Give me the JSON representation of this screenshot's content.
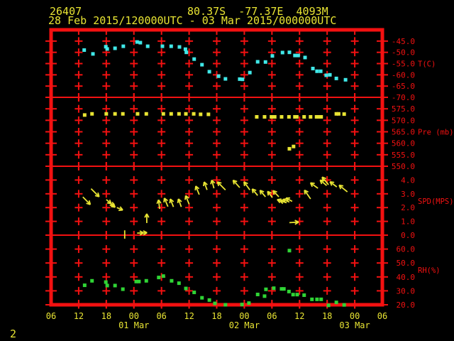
{
  "header": {
    "station_id": "26407",
    "location": "80.37S  -77.37E  4093M",
    "period": "28 Feb 2015/120000UTC - 03 Mar 2015/000000UTC"
  },
  "footer_note": "2",
  "colors": {
    "background": "#000000",
    "grid": "#f31111",
    "axis_label": "#f31111",
    "text_yellow": "#e8e433",
    "temperature": "#40e8e8",
    "pressure": "#e8e433",
    "wind": "#e8e433",
    "humidity": "#2fd435"
  },
  "chart_data": {
    "type": "scatter",
    "title": "Station 26407 meteogram 28 Feb 2015 12UTC - 03 Mar 2015 00UTC",
    "x_axis": {
      "hours_span": 72,
      "tick_step_hours": 6,
      "tick_labels": [
        "06",
        "12",
        "18",
        "00",
        "06",
        "12",
        "18",
        "00",
        "06",
        "12",
        "18",
        "00",
        "06"
      ],
      "date_labels": [
        {
          "text": "01 Mar",
          "tick": 3
        },
        {
          "text": "02 Mar",
          "tick": 7
        },
        {
          "text": "03 Mar",
          "tick": 11
        }
      ]
    },
    "panels": [
      {
        "id": "temperature",
        "title": "T(C)",
        "ylim": [
          -70,
          -40
        ],
        "tick_values": [
          -45,
          -50,
          -55,
          -60,
          -65,
          -70
        ],
        "tick_labels": [
          "-45.0",
          "-50.0",
          "-55.0",
          "-60.0",
          "-65.0",
          "-70.0"
        ],
        "points": [
          [
            7.2,
            -49.0
          ],
          [
            9.1,
            -50.7
          ],
          [
            11.9,
            -47.5
          ],
          [
            12.2,
            -48.5
          ],
          [
            13.9,
            -48.2
          ],
          [
            15.7,
            -47.3
          ],
          [
            18.7,
            -45.4
          ],
          [
            19.4,
            -45.7
          ],
          [
            21.0,
            -47.3
          ],
          [
            24.2,
            -47.3
          ],
          [
            26.1,
            -47.3
          ],
          [
            27.9,
            -47.6
          ],
          [
            29.2,
            -48.6
          ],
          [
            29.4,
            -50.0
          ],
          [
            31.1,
            -53.0
          ],
          [
            32.8,
            -55.5
          ],
          [
            34.4,
            -58.6
          ],
          [
            36.4,
            -60.6
          ],
          [
            37.9,
            -61.8
          ],
          [
            41.0,
            -61.9
          ],
          [
            41.6,
            -62.0
          ],
          [
            43.2,
            -59.0
          ],
          [
            44.9,
            -54.2
          ],
          [
            46.6,
            -54.3
          ],
          [
            48.1,
            -51.6
          ],
          [
            50.3,
            -50.1
          ],
          [
            51.8,
            -50.0
          ],
          [
            53.0,
            -51.4
          ],
          [
            53.7,
            -51.4
          ],
          [
            55.2,
            -52.3
          ],
          [
            56.9,
            -57.2
          ],
          [
            57.8,
            -58.4
          ],
          [
            58.6,
            -58.4
          ],
          [
            59.8,
            -60.2
          ],
          [
            60.6,
            -60.0
          ],
          [
            62.0,
            -61.6
          ],
          [
            64.0,
            -62.2
          ]
        ]
      },
      {
        "id": "pressure",
        "title": "Pre (mb)",
        "ylim": [
          550,
          580
        ],
        "tick_values": [
          575,
          570,
          565,
          560,
          555,
          550
        ],
        "tick_labels": [
          "575.0",
          "570.0",
          "565.0",
          "560.0",
          "555.0",
          "550.0"
        ],
        "points": [
          [
            7.3,
            572.3
          ],
          [
            8.9,
            572.8
          ],
          [
            12.0,
            572.8
          ],
          [
            13.9,
            572.8
          ],
          [
            15.6,
            572.8
          ],
          [
            18.8,
            572.8
          ],
          [
            20.7,
            572.8
          ],
          [
            24.4,
            572.8
          ],
          [
            26.1,
            572.8
          ],
          [
            27.8,
            572.8
          ],
          [
            29.3,
            572.8
          ],
          [
            31.0,
            572.8
          ],
          [
            32.5,
            572.6
          ],
          [
            34.2,
            572.6
          ],
          [
            44.7,
            571.5
          ],
          [
            46.4,
            571.5
          ],
          [
            47.9,
            571.5
          ],
          [
            48.6,
            571.5
          ],
          [
            50.1,
            571.5
          ],
          [
            51.7,
            571.5
          ],
          [
            53.0,
            571.5
          ],
          [
            53.4,
            571.5
          ],
          [
            55.0,
            571.5
          ],
          [
            56.4,
            571.5
          ],
          [
            57.7,
            571.5
          ],
          [
            58.1,
            571.5
          ],
          [
            58.7,
            571.5
          ],
          [
            62.0,
            572.8
          ],
          [
            62.5,
            572.8
          ],
          [
            63.7,
            572.7
          ],
          [
            51.8,
            557.6
          ],
          [
            52.7,
            558.6
          ]
        ]
      },
      {
        "id": "wind_speed",
        "title": "SPD(MPS)",
        "ylim": [
          0,
          5
        ],
        "tick_values": [
          4,
          3,
          2,
          1,
          0
        ],
        "tick_labels": [
          "4.0",
          "3.0",
          "2.0",
          "1.0",
          "0.0"
        ],
        "arrows": [
          {
            "h": 6.9,
            "spd": 2.77,
            "dir": -45,
            "len": 15
          },
          {
            "h": 8.7,
            "spd": 3.37,
            "dir": -45,
            "len": 16
          },
          {
            "h": 12.0,
            "spd": 2.58,
            "dir": -40,
            "len": 14,
            "double": true
          },
          {
            "h": 12.5,
            "spd": 2.42,
            "dir": -40,
            "len": 12
          },
          {
            "h": 14.3,
            "spd": 2.0,
            "dir": -22,
            "len": 9
          },
          {
            "h": 18.7,
            "spd": 0.15,
            "dir": 2,
            "len": 14,
            "double": true
          },
          {
            "h": 20.8,
            "spd": 0.88,
            "dir": 90,
            "len": 13
          },
          {
            "h": 23.6,
            "spd": 1.9,
            "dir": 97,
            "len": 13
          },
          {
            "h": 25.4,
            "spd": 2.07,
            "dir": 113,
            "len": 13
          },
          {
            "h": 26.6,
            "spd": 2.05,
            "dir": 112,
            "len": 12
          },
          {
            "h": 28.3,
            "spd": 2.05,
            "dir": 110,
            "len": 12
          },
          {
            "h": 30.0,
            "spd": 2.25,
            "dir": 112,
            "len": 13
          },
          {
            "h": 32.2,
            "spd": 2.94,
            "dir": 112,
            "len": 13
          },
          {
            "h": 33.9,
            "spd": 3.28,
            "dir": 110,
            "len": 12
          },
          {
            "h": 35.4,
            "spd": 3.4,
            "dir": 105,
            "len": 12
          },
          {
            "h": 37.9,
            "spd": 3.28,
            "dir": 135,
            "len": 16
          },
          {
            "h": 41.0,
            "spd": 3.45,
            "dir": 132,
            "len": 14
          },
          {
            "h": 43.2,
            "spd": 3.28,
            "dir": 126,
            "len": 14
          },
          {
            "h": 44.9,
            "spd": 2.88,
            "dir": 130,
            "len": 12
          },
          {
            "h": 46.6,
            "spd": 2.78,
            "dir": 130,
            "len": 12
          },
          {
            "h": 48.1,
            "spd": 2.73,
            "dir": 128,
            "len": 11
          },
          {
            "h": 49.5,
            "spd": 2.78,
            "dir": 133,
            "len": 12
          },
          {
            "h": 50.6,
            "spd": 2.4,
            "dir": 160,
            "len": 10
          },
          {
            "h": 51.2,
            "spd": 2.35,
            "dir": 162,
            "len": 10
          },
          {
            "h": 51.8,
            "spd": 2.4,
            "dir": 158,
            "len": 10
          },
          {
            "h": 52.4,
            "spd": 2.45,
            "dir": 152,
            "len": 10
          },
          {
            "h": 51.8,
            "spd": 0.91,
            "dir": 3,
            "len": 13
          },
          {
            "h": 56.4,
            "spd": 2.63,
            "dir": 125,
            "len": 15
          },
          {
            "h": 58.0,
            "spd": 3.4,
            "dir": 144,
            "len": 13
          },
          {
            "h": 59.9,
            "spd": 3.6,
            "dir": 140,
            "len": 12
          },
          {
            "h": 60.3,
            "spd": 3.66,
            "dir": 130,
            "len": 14
          },
          {
            "h": 62.1,
            "spd": 3.5,
            "dir": 143,
            "len": 12
          },
          {
            "h": 64.4,
            "spd": 3.14,
            "dir": 141,
            "len": 15
          }
        ],
        "calm_marks": [
          {
            "h": 16.0,
            "spd": 0.35
          }
        ]
      },
      {
        "id": "relative_humidity",
        "title": "RH(%)",
        "ylim": [
          20,
          70
        ],
        "tick_values": [
          60,
          50,
          40,
          30,
          20
        ],
        "tick_labels": [
          "60.0",
          "50.0",
          "40.0",
          "30.0",
          "20.0"
        ],
        "points": [
          [
            7.3,
            34.0
          ],
          [
            8.9,
            37.2
          ],
          [
            11.9,
            36.3
          ],
          [
            12.2,
            33.8
          ],
          [
            13.9,
            33.8
          ],
          [
            15.6,
            31.2
          ],
          [
            18.5,
            36.7
          ],
          [
            19.1,
            36.7
          ],
          [
            20.7,
            37.2
          ],
          [
            23.4,
            39.6
          ],
          [
            24.4,
            40.6
          ],
          [
            26.2,
            37.2
          ],
          [
            27.8,
            35.5
          ],
          [
            29.3,
            31.7
          ],
          [
            31.1,
            28.9
          ],
          [
            32.8,
            25.0
          ],
          [
            34.4,
            23.4
          ],
          [
            35.6,
            21.0
          ],
          [
            37.9,
            20.0
          ],
          [
            41.5,
            20.2
          ],
          [
            43.0,
            21.2
          ],
          [
            44.9,
            27.4
          ],
          [
            46.4,
            26.2
          ],
          [
            46.7,
            31.1
          ],
          [
            48.4,
            31.9
          ],
          [
            50.1,
            31.4
          ],
          [
            50.6,
            31.4
          ],
          [
            51.7,
            29.5
          ],
          [
            52.6,
            27.3
          ],
          [
            53.5,
            27.3
          ],
          [
            51.8,
            58.9
          ],
          [
            55.0,
            26.9
          ],
          [
            56.7,
            23.9
          ],
          [
            57.8,
            23.9
          ],
          [
            58.7,
            23.9
          ],
          [
            60.3,
            19.6
          ],
          [
            62.0,
            21.7
          ],
          [
            63.7,
            19.9
          ]
        ]
      }
    ]
  }
}
